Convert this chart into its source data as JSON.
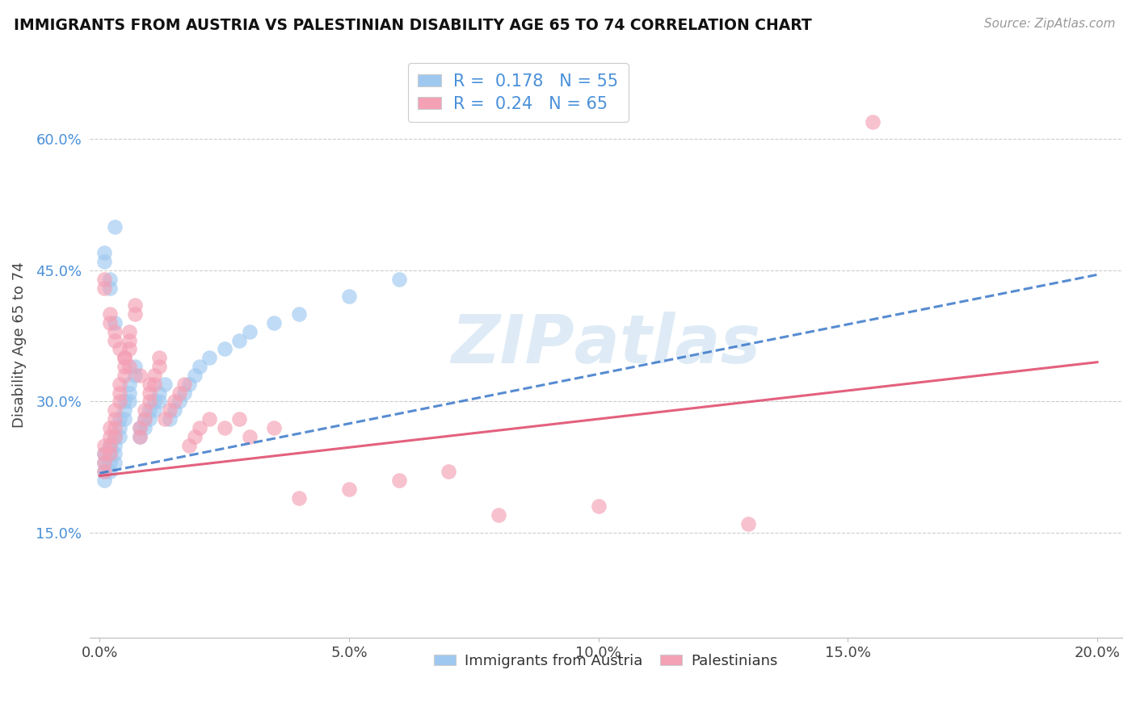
{
  "title": "IMMIGRANTS FROM AUSTRIA VS PALESTINIAN DISABILITY AGE 65 TO 74 CORRELATION CHART",
  "source_text": "Source: ZipAtlas.com",
  "ylabel": "Disability Age 65 to 74",
  "xlim": [
    -0.002,
    0.205
  ],
  "ylim": [
    0.03,
    0.7
  ],
  "xticks": [
    0.0,
    0.05,
    0.1,
    0.15,
    0.2
  ],
  "xticklabels": [
    "0.0%",
    "5.0%",
    "10.0%",
    "15.0%",
    "20.0%"
  ],
  "yticks": [
    0.15,
    0.3,
    0.45,
    0.6
  ],
  "yticklabels": [
    "15.0%",
    "30.0%",
    "45.0%",
    "60.0%"
  ],
  "legend_labels": [
    "Immigrants from Austria",
    "Palestinians"
  ],
  "R_austria": 0.178,
  "N_austria": 55,
  "R_palestine": 0.24,
  "N_palestine": 65,
  "austria_color": "#9ec8f0",
  "palestine_color": "#f4a0b5",
  "austria_line_color": "#3a78c9",
  "palestine_line_color": "#e05070",
  "watermark_color": "#c8dff0",
  "grid_color": "#cccccc",
  "austria_line_x0": 0.0,
  "austria_line_y0": 0.218,
  "austria_line_x1": 0.2,
  "austria_line_y1": 0.445,
  "palestine_line_x0": 0.0,
  "palestine_line_y0": 0.215,
  "palestine_line_x1": 0.2,
  "palestine_line_y1": 0.345,
  "austria_scatter_x": [
    0.001,
    0.001,
    0.001,
    0.001,
    0.002,
    0.002,
    0.002,
    0.002,
    0.003,
    0.003,
    0.003,
    0.003,
    0.004,
    0.004,
    0.004,
    0.005,
    0.005,
    0.005,
    0.006,
    0.006,
    0.006,
    0.007,
    0.007,
    0.008,
    0.008,
    0.009,
    0.009,
    0.01,
    0.01,
    0.011,
    0.011,
    0.012,
    0.012,
    0.013,
    0.014,
    0.015,
    0.016,
    0.017,
    0.018,
    0.019,
    0.02,
    0.022,
    0.025,
    0.028,
    0.03,
    0.035,
    0.04,
    0.05,
    0.06,
    0.001,
    0.001,
    0.002,
    0.002,
    0.003,
    0.003
  ],
  "austria_scatter_y": [
    0.24,
    0.23,
    0.22,
    0.21,
    0.25,
    0.24,
    0.23,
    0.22,
    0.26,
    0.25,
    0.24,
    0.23,
    0.28,
    0.27,
    0.26,
    0.3,
    0.29,
    0.28,
    0.32,
    0.31,
    0.3,
    0.34,
    0.33,
    0.27,
    0.26,
    0.28,
    0.27,
    0.29,
    0.28,
    0.3,
    0.29,
    0.31,
    0.3,
    0.32,
    0.28,
    0.29,
    0.3,
    0.31,
    0.32,
    0.33,
    0.34,
    0.35,
    0.36,
    0.37,
    0.38,
    0.39,
    0.4,
    0.42,
    0.44,
    0.46,
    0.47,
    0.43,
    0.44,
    0.39,
    0.5
  ],
  "palestine_scatter_x": [
    0.001,
    0.001,
    0.001,
    0.001,
    0.002,
    0.002,
    0.002,
    0.002,
    0.003,
    0.003,
    0.003,
    0.003,
    0.004,
    0.004,
    0.004,
    0.005,
    0.005,
    0.005,
    0.006,
    0.006,
    0.006,
    0.007,
    0.007,
    0.008,
    0.008,
    0.009,
    0.009,
    0.01,
    0.01,
    0.011,
    0.011,
    0.012,
    0.012,
    0.013,
    0.014,
    0.015,
    0.016,
    0.017,
    0.018,
    0.019,
    0.02,
    0.022,
    0.025,
    0.028,
    0.03,
    0.035,
    0.04,
    0.05,
    0.06,
    0.07,
    0.08,
    0.1,
    0.13,
    0.155,
    0.001,
    0.001,
    0.002,
    0.002,
    0.003,
    0.003,
    0.004,
    0.005,
    0.006,
    0.008,
    0.01
  ],
  "palestine_scatter_y": [
    0.25,
    0.24,
    0.23,
    0.22,
    0.27,
    0.26,
    0.25,
    0.24,
    0.29,
    0.28,
    0.27,
    0.26,
    0.32,
    0.31,
    0.3,
    0.35,
    0.34,
    0.33,
    0.38,
    0.37,
    0.36,
    0.41,
    0.4,
    0.27,
    0.26,
    0.29,
    0.28,
    0.31,
    0.3,
    0.33,
    0.32,
    0.35,
    0.34,
    0.28,
    0.29,
    0.3,
    0.31,
    0.32,
    0.25,
    0.26,
    0.27,
    0.28,
    0.27,
    0.28,
    0.26,
    0.27,
    0.19,
    0.2,
    0.21,
    0.22,
    0.17,
    0.18,
    0.16,
    0.62,
    0.43,
    0.44,
    0.39,
    0.4,
    0.38,
    0.37,
    0.36,
    0.35,
    0.34,
    0.33,
    0.32
  ]
}
